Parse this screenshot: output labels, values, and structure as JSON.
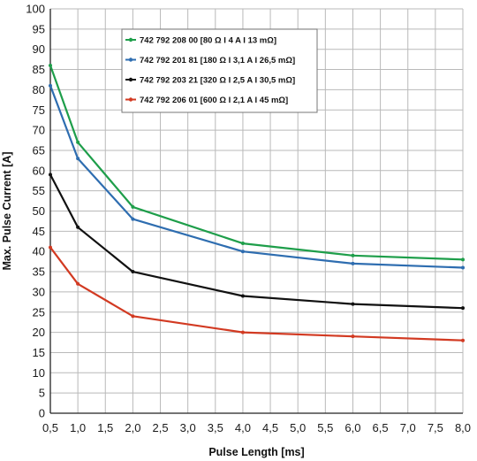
{
  "chart_data": {
    "type": "line",
    "title": "",
    "xlabel": "Pulse  Length [ms]",
    "ylabel": "Max. Pulse Current [A]",
    "xlim": [
      0.5,
      8.0
    ],
    "ylim": [
      0,
      100
    ],
    "xticks": [
      "0,5",
      "1,0",
      "1,5",
      "2,0",
      "2,5",
      "3,0",
      "3,5",
      "4,0",
      "4,5",
      "5,0",
      "5,5",
      "6,0",
      "6,5",
      "7,0",
      "7,5",
      "8,0"
    ],
    "yticks": [
      "0",
      "5",
      "10",
      "15",
      "20",
      "25",
      "30",
      "35",
      "40",
      "45",
      "50",
      "55",
      "60",
      "65",
      "70",
      "75",
      "80",
      "85",
      "90",
      "95",
      "100"
    ],
    "grid": true,
    "legend_position": "top-center",
    "x": [
      0.5,
      1.0,
      2.0,
      4.0,
      6.0,
      8.0
    ],
    "series": [
      {
        "name": "742 792 208 00 [80 Ω I 4 A I 13 mΩ]",
        "color": "#1e9e4a",
        "values": [
          86,
          67,
          51,
          42,
          39,
          38
        ]
      },
      {
        "name": "742 792 201 81 [180 Ω I 3,1 A I 26,5 mΩ]",
        "color": "#2e6db0",
        "values": [
          81,
          63,
          48,
          40,
          37,
          36
        ]
      },
      {
        "name": "742 792 203 21 [320 Ω I 2,5 A I 30,5 mΩ]",
        "color": "#111111",
        "values": [
          59,
          46,
          35,
          29,
          27,
          26
        ]
      },
      {
        "name": "742 792 206 01 [600 Ω I 2,1 A I 45 mΩ]",
        "color": "#d23a22",
        "values": [
          41,
          32,
          24,
          20,
          19,
          18
        ]
      }
    ]
  }
}
